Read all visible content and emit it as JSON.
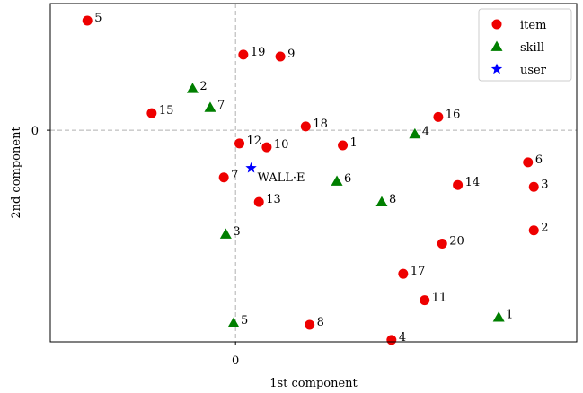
{
  "chart_data": {
    "type": "scatter",
    "title": "",
    "xlabel": "1st component",
    "ylabel": "2nd component",
    "xlim": [
      -0.95,
      1.75
    ],
    "ylim": [
      -1.12,
      0.67
    ],
    "xticks": [
      {
        "value": 0,
        "label": "0"
      }
    ],
    "yticks": [
      {
        "value": 0,
        "label": "0"
      }
    ],
    "zero_lines": true,
    "zero_line_color": "#b0b0b0",
    "grid": false,
    "legend_position": "top-right",
    "series": [
      {
        "name": "item",
        "marker": "circle",
        "color": "#ee0000",
        "points": [
          {
            "x": -0.76,
            "y": 0.58,
            "label": "5"
          },
          {
            "x": 0.04,
            "y": 0.4,
            "label": "19"
          },
          {
            "x": 0.23,
            "y": 0.39,
            "label": "9"
          },
          {
            "x": -0.43,
            "y": 0.09,
            "label": "15"
          },
          {
            "x": 0.36,
            "y": 0.02,
            "label": "18"
          },
          {
            "x": 1.04,
            "y": 0.07,
            "label": "16"
          },
          {
            "x": 0.02,
            "y": -0.07,
            "label": "12"
          },
          {
            "x": 0.16,
            "y": -0.09,
            "label": "10"
          },
          {
            "x": 0.55,
            "y": -0.08,
            "label": "1"
          },
          {
            "x": 1.5,
            "y": -0.17,
            "label": "6"
          },
          {
            "x": 1.53,
            "y": -0.3,
            "label": "3"
          },
          {
            "x": 1.14,
            "y": -0.29,
            "label": "14"
          },
          {
            "x": -0.06,
            "y": -0.25,
            "label": "7"
          },
          {
            "x": 0.12,
            "y": -0.38,
            "label": "13"
          },
          {
            "x": 1.53,
            "y": -0.53,
            "label": "2"
          },
          {
            "x": 1.06,
            "y": -0.6,
            "label": "20"
          },
          {
            "x": 0.86,
            "y": -0.76,
            "label": "17"
          },
          {
            "x": 0.97,
            "y": -0.9,
            "label": "11"
          },
          {
            "x": 0.38,
            "y": -1.03,
            "label": "8"
          },
          {
            "x": 0.8,
            "y": -1.11,
            "label": "4"
          }
        ]
      },
      {
        "name": "skill",
        "marker": "triangle",
        "color": "#007f00",
        "points": [
          {
            "x": -0.22,
            "y": 0.22,
            "label": "2"
          },
          {
            "x": -0.13,
            "y": 0.12,
            "label": "7"
          },
          {
            "x": 0.92,
            "y": -0.02,
            "label": "4"
          },
          {
            "x": 0.52,
            "y": -0.27,
            "label": "6"
          },
          {
            "x": 0.75,
            "y": -0.38,
            "label": "8"
          },
          {
            "x": -0.05,
            "y": -0.55,
            "label": "3"
          },
          {
            "x": 1.35,
            "y": -0.99,
            "label": "1"
          },
          {
            "x": -0.01,
            "y": -1.02,
            "label": "5"
          }
        ]
      },
      {
        "name": "user",
        "marker": "star",
        "color": "#0000ff",
        "points": [
          {
            "x": 0.08,
            "y": -0.2,
            "label": "WALL·E"
          }
        ]
      }
    ]
  }
}
